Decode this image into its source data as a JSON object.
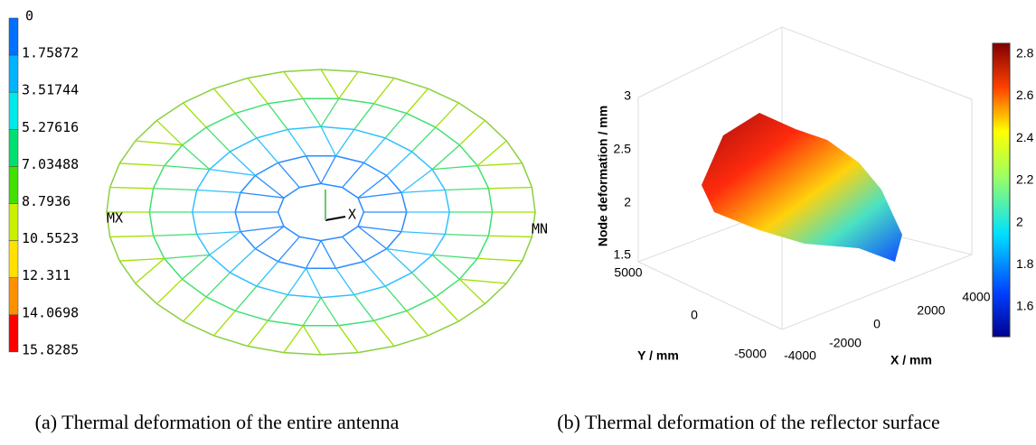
{
  "panel_a": {
    "legend_labels": [
      "0",
      "1.75872",
      "3.51744",
      "5.27616",
      "7.03488",
      "8.7936",
      "10.5523",
      "12.311",
      "14.0698",
      "15.8285"
    ],
    "legend_colors": [
      "#0000ff",
      "#0070ff",
      "#00b4ff",
      "#00e8e8",
      "#00e070",
      "#40e000",
      "#c8f000",
      "#ffe000",
      "#ff9000",
      "#ff0000"
    ],
    "markers": {
      "min": "MN",
      "max": "MX",
      "axis_x": "X"
    },
    "caption": "(a) Thermal deformation of the entire antenna"
  },
  "panel_b": {
    "z_label": "Node deformation / mm",
    "x_label": "X / mm",
    "y_label": "Y / mm",
    "zticks": [
      "1.5",
      "2",
      "2.5",
      "3"
    ],
    "xticks": [
      "-4000",
      "-2000",
      "0",
      "2000",
      "4000"
    ],
    "yticks": [
      "5000",
      "0",
      "-5000"
    ],
    "colorbar_ticks": [
      "1.6",
      "1.8",
      "2",
      "2.2",
      "2.4",
      "2.6",
      "2.8"
    ],
    "caption": "(b) Thermal deformation of the reflector surface"
  }
}
